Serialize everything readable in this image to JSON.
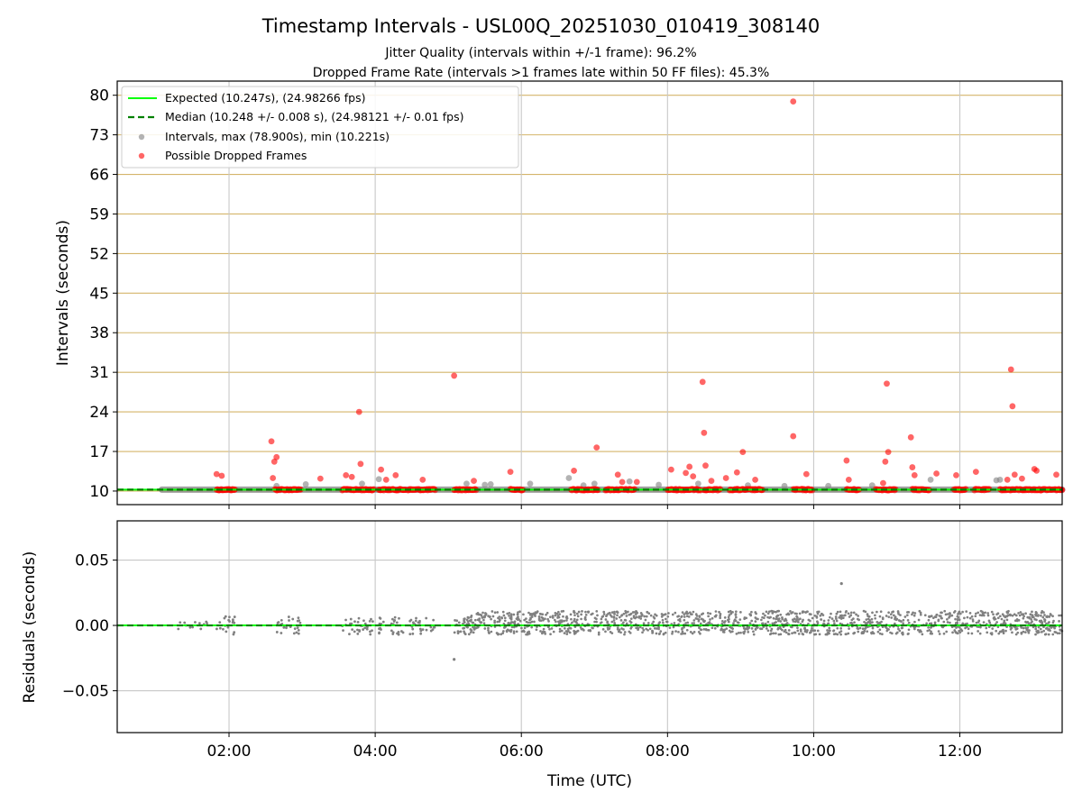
{
  "chart_data": {
    "type": "scatter",
    "title": "Timestamp Intervals - USL00Q_20251030_010419_308140",
    "subtitle_lines": [
      "Jitter Quality (intervals within +/-1 frame): 96.2%",
      "Dropped Frame Rate (intervals >1 frames late within 50 FF files): 45.3%"
    ],
    "xlabel": "Time (UTC)",
    "x_ticks": [
      "02:00",
      "04:00",
      "06:00",
      "08:00",
      "10:00",
      "12:00"
    ],
    "x_tick_hours": [
      2,
      4,
      6,
      8,
      10,
      12
    ],
    "xlim_hours": [
      0.47,
      13.4
    ],
    "colors": {
      "expected": "#00ff00",
      "median": "#008000",
      "intervals": "#808080",
      "dropped": "#ff0000",
      "hgrid": "#d4b56a",
      "vgrid": "#c8c8c8"
    },
    "panels": {
      "intervals": {
        "ylabel": "Intervals (seconds)",
        "ylim": [
          7.6,
          82.5
        ],
        "y_ticks": [
          "10",
          "17",
          "24",
          "31",
          "38",
          "45",
          "52",
          "59",
          "66",
          "73",
          "80"
        ],
        "y_tick_values": [
          10,
          17,
          24,
          31,
          38,
          45,
          52,
          59,
          66,
          73,
          80
        ],
        "expected_interval": 10.247,
        "median_interval": 10.248,
        "legend": {
          "placement": "top-left",
          "entries": [
            "Expected (10.247s), (24.98266 fps)",
            "Median (10.248 +/- 0.008 s), (24.98121 +/- 0.01 fps)",
            "Intervals, max (78.900s), min (10.221s)",
            "Possible Dropped Frames"
          ]
        },
        "dropped_segments": [
          [
            1.83,
            2.08
          ],
          [
            2.63,
            2.98
          ],
          [
            3.55,
            3.98
          ],
          [
            4.05,
            4.42
          ],
          [
            4.45,
            4.82
          ],
          [
            5.08,
            5.38
          ],
          [
            5.85,
            6.02
          ],
          [
            6.68,
            7.05
          ],
          [
            7.15,
            7.55
          ],
          [
            8.0,
            8.45
          ],
          [
            8.5,
            8.72
          ],
          [
            8.85,
            9.3
          ],
          [
            9.72,
            9.98
          ],
          [
            10.45,
            10.62
          ],
          [
            10.85,
            11.12
          ],
          [
            11.35,
            11.58
          ],
          [
            11.92,
            12.08
          ],
          [
            12.2,
            12.4
          ],
          [
            12.55,
            13.4
          ]
        ],
        "dropped_outliers": [
          [
            1.83,
            13.0
          ],
          [
            1.9,
            12.7
          ],
          [
            2.58,
            18.8
          ],
          [
            2.62,
            15.2
          ],
          [
            2.65,
            16.0
          ],
          [
            2.6,
            12.3
          ],
          [
            3.25,
            12.2
          ],
          [
            3.6,
            12.8
          ],
          [
            3.68,
            12.5
          ],
          [
            3.78,
            24.0
          ],
          [
            3.8,
            14.8
          ],
          [
            4.08,
            13.8
          ],
          [
            4.15,
            12.0
          ],
          [
            4.28,
            12.8
          ],
          [
            4.65,
            12.0
          ],
          [
            5.08,
            30.4
          ],
          [
            5.35,
            11.8
          ],
          [
            5.85,
            13.4
          ],
          [
            6.72,
            13.6
          ],
          [
            7.03,
            17.7
          ],
          [
            7.32,
            12.9
          ],
          [
            7.38,
            11.6
          ],
          [
            7.58,
            11.6
          ],
          [
            8.05,
            13.8
          ],
          [
            8.25,
            13.2
          ],
          [
            8.3,
            14.3
          ],
          [
            8.35,
            12.6
          ],
          [
            8.48,
            29.3
          ],
          [
            8.5,
            20.3
          ],
          [
            8.52,
            14.5
          ],
          [
            8.6,
            11.8
          ],
          [
            8.8,
            12.3
          ],
          [
            8.95,
            13.3
          ],
          [
            9.03,
            16.9
          ],
          [
            9.2,
            12.0
          ],
          [
            9.72,
            78.9
          ],
          [
            9.72,
            19.7
          ],
          [
            9.9,
            13.0
          ],
          [
            10.45,
            15.4
          ],
          [
            10.48,
            12.0
          ],
          [
            10.95,
            11.4
          ],
          [
            11.0,
            29.0
          ],
          [
            11.02,
            16.9
          ],
          [
            10.98,
            15.2
          ],
          [
            11.33,
            19.5
          ],
          [
            11.35,
            14.2
          ],
          [
            11.38,
            12.8
          ],
          [
            11.68,
            13.1
          ],
          [
            11.95,
            12.8
          ],
          [
            12.22,
            13.4
          ],
          [
            12.65,
            12.0
          ],
          [
            12.7,
            31.5
          ],
          [
            12.72,
            25.0
          ],
          [
            12.75,
            12.9
          ],
          [
            12.85,
            12.2
          ],
          [
            13.02,
            13.9
          ],
          [
            13.05,
            13.6
          ],
          [
            13.32,
            12.9
          ]
        ],
        "normal_outliers": [
          [
            2.65,
            10.9
          ],
          [
            3.05,
            11.2
          ],
          [
            3.82,
            11.3
          ],
          [
            4.05,
            12.1
          ],
          [
            5.25,
            11.3
          ],
          [
            5.5,
            11.1
          ],
          [
            5.58,
            11.2
          ],
          [
            6.12,
            11.3
          ],
          [
            6.65,
            12.3
          ],
          [
            6.85,
            11.0
          ],
          [
            7.0,
            11.3
          ],
          [
            7.48,
            11.7
          ],
          [
            7.88,
            11.1
          ],
          [
            8.42,
            11.3
          ],
          [
            9.1,
            11.0
          ],
          [
            9.6,
            10.9
          ],
          [
            10.2,
            10.9
          ],
          [
            10.8,
            11.0
          ],
          [
            11.6,
            12.0
          ],
          [
            12.5,
            11.9
          ],
          [
            12.55,
            12.0
          ]
        ]
      },
      "residuals": {
        "ylabel": "Residuals (seconds)",
        "ylim": [
          -0.082,
          0.08
        ],
        "y_ticks": [
          "0.05",
          "0.00",
          "−0.05"
        ],
        "y_tick_values": [
          0.05,
          0.0,
          -0.05
        ],
        "dense_start_hour": 5.2,
        "end_hour": 13.4,
        "outliers": [
          [
            10.38,
            0.032
          ],
          [
            5.08,
            -0.026
          ]
        ]
      }
    }
  }
}
